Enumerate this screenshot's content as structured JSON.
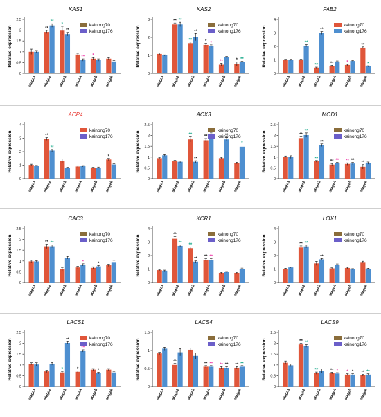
{
  "figure": {
    "ylabel": "Relative expression",
    "sig_colors": [
      "#ef3aa8",
      "#1f1f1f",
      "#18a98a",
      "#1f1f1f"
    ]
  },
  "chart_data": [
    {
      "type": "bar",
      "title": "KAS1",
      "title_color": "#111111",
      "ylabel": "Relative expression",
      "ylim": [
        0,
        2.5
      ],
      "yticks": [
        0,
        0.5,
        1,
        1.5,
        2,
        2.5
      ],
      "categories": [
        "stage1",
        "stage2",
        "stage3",
        "stage4",
        "stage5",
        "stage6"
      ],
      "series": [
        {
          "name": "kainong70",
          "color": "#e0563a",
          "values": [
            1,
            1.92,
            1.98,
            0.87,
            0.68,
            0.68
          ],
          "errors": [
            0.12,
            0.07,
            0.2,
            0.06,
            0.05,
            0.05
          ],
          "sig": [
            "",
            "**",
            "*",
            "",
            "*",
            ""
          ]
        },
        {
          "name": "kainong176",
          "color": "#4e8fd0",
          "values": [
            1,
            2.22,
            1.82,
            0.62,
            0.62,
            0.55
          ],
          "errors": [
            0.06,
            0.08,
            0.08,
            0.05,
            0.05,
            0.04
          ],
          "sig": [
            "",
            "**",
            "**",
            "**",
            "",
            ""
          ]
        }
      ],
      "legend_colors": [
        "#8a6d3b",
        "#6b5fc9"
      ]
    },
    {
      "type": "bar",
      "title": "KAS2",
      "title_color": "#111111",
      "ylabel": "Relative expression",
      "ylim": [
        0,
        3
      ],
      "yticks": [
        0,
        1,
        2,
        3
      ],
      "categories": [
        "stage1",
        "stage2",
        "stage3",
        "stage4",
        "stage5",
        "stage6"
      ],
      "series": [
        {
          "name": "kainong70",
          "color": "#e0563a",
          "values": [
            1.08,
            2.72,
            1.68,
            1.58,
            0.48,
            0.52
          ],
          "errors": [
            0.05,
            0.08,
            0.06,
            0.1,
            0.08,
            0.12
          ],
          "sig": [
            "",
            "**",
            "**",
            "*",
            "**",
            "*"
          ]
        },
        {
          "name": "kainong176",
          "color": "#4e8fd0",
          "values": [
            1,
            2.72,
            2.02,
            1.5,
            0.9,
            0.62
          ],
          "errors": [
            0.03,
            0.12,
            0.2,
            0.08,
            0.04,
            0.06
          ],
          "sig": [
            "",
            "**",
            "**",
            "*",
            "",
            "**"
          ]
        }
      ],
      "legend_colors": [
        "#8a6d3b",
        "#6b5fc9"
      ]
    },
    {
      "type": "bar",
      "title": "FAB2",
      "title_color": "#111111",
      "ylabel": "Relative expression",
      "ylim": [
        0,
        4
      ],
      "yticks": [
        0,
        1,
        2,
        3,
        4
      ],
      "categories": [
        "stage1",
        "stage2",
        "stage3",
        "stage4",
        "stage5",
        "stage6"
      ],
      "series": [
        {
          "name": "kainong70",
          "color": "#e0563a",
          "values": [
            1,
            1,
            0.42,
            0.55,
            0.62,
            1.9
          ],
          "errors": [
            0.04,
            0.05,
            0.04,
            0.05,
            0.05,
            0.06
          ],
          "sig": [
            "",
            "",
            "**",
            "**",
            "*",
            "**"
          ]
        },
        {
          "name": "kainong176",
          "color": "#4e8fd0",
          "values": [
            1,
            2.05,
            3,
            0.88,
            0.92,
            0.52
          ],
          "errors": [
            0.04,
            0.08,
            0.1,
            0.04,
            0.04,
            0.04
          ],
          "sig": [
            "",
            "**",
            "**",
            "",
            "",
            "*"
          ]
        }
      ],
      "legend_colors": [
        "#e0563a",
        "#4e8fd0"
      ]
    },
    {
      "type": "bar",
      "title": "ACP4",
      "title_color": "#e8322c",
      "ylabel": "Relative expression",
      "ylim": [
        0,
        4
      ],
      "yticks": [
        0,
        1,
        2,
        3,
        4
      ],
      "categories": [
        "stage1",
        "stage2",
        "stage3",
        "stage4",
        "stage5",
        "stage6"
      ],
      "series": [
        {
          "name": "kainong70",
          "color": "#e0563a",
          "values": [
            1.02,
            2.95,
            1.32,
            0.9,
            0.8,
            1.42
          ],
          "errors": [
            0.05,
            0.1,
            0.15,
            0.06,
            0.04,
            0.08
          ],
          "sig": [
            "",
            "**",
            "",
            "",
            "",
            "*"
          ]
        },
        {
          "name": "kainong176",
          "color": "#4e8fd0",
          "values": [
            0.95,
            2.08,
            0.8,
            0.92,
            0.82,
            1.05
          ],
          "errors": [
            0.03,
            0.08,
            0.04,
            0.05,
            0.04,
            0.05
          ],
          "sig": [
            "",
            "**",
            "",
            "",
            "",
            ""
          ]
        }
      ],
      "legend_colors": [
        "#e0563a",
        "#6b5fc9"
      ]
    },
    {
      "type": "bar",
      "title": "ACX3",
      "title_color": "#111111",
      "ylabel": "Relative expression",
      "ylim": [
        0,
        2.5
      ],
      "yticks": [
        0,
        0.5,
        1,
        1.5,
        2,
        2.5
      ],
      "categories": [
        "stage1",
        "stage2",
        "stage3",
        "stage4",
        "stage5",
        "stage6"
      ],
      "series": [
        {
          "name": "kainong70",
          "color": "#e0563a",
          "values": [
            0.95,
            0.8,
            1.82,
            1.78,
            0.95,
            0.72
          ],
          "errors": [
            0.04,
            0.05,
            0.12,
            0.08,
            0.04,
            0.04
          ],
          "sig": [
            "",
            "",
            "**",
            "**",
            "",
            ""
          ]
        },
        {
          "name": "kainong176",
          "color": "#4e8fd0",
          "values": [
            1.08,
            0.78,
            0.78,
            2.02,
            1.82,
            1.48
          ],
          "errors": [
            0.03,
            0.04,
            0.05,
            0.1,
            0.08,
            0.08
          ],
          "sig": [
            "",
            "",
            "**",
            "**",
            "**",
            "*"
          ]
        }
      ],
      "legend_colors": [
        "#8a6d3b",
        "#6b5fc9"
      ]
    },
    {
      "type": "bar",
      "title": "MOD1",
      "title_color": "#111111",
      "ylabel": "Relative expression",
      "ylim": [
        0,
        2.5
      ],
      "yticks": [
        0,
        0.5,
        1,
        1.5,
        2,
        2.5
      ],
      "categories": [
        "stage1",
        "stage2",
        "stage3",
        "stage4",
        "stage5",
        "stage6"
      ],
      "series": [
        {
          "name": "kainong70",
          "color": "#e0563a",
          "values": [
            1.02,
            1.88,
            0.8,
            0.65,
            0.68,
            0.55
          ],
          "errors": [
            0.03,
            0.06,
            0.04,
            0.05,
            0.05,
            0.1
          ],
          "sig": [
            "",
            "**",
            "**",
            "**",
            "**",
            "**"
          ]
        },
        {
          "name": "kainong176",
          "color": "#4e8fd0",
          "values": [
            1,
            2.02,
            1.55,
            0.72,
            0.7,
            0.72
          ],
          "errors": [
            0.06,
            0.1,
            0.06,
            0.04,
            0.05,
            0.05
          ],
          "sig": [
            "",
            "**",
            "**",
            "**",
            "**",
            ""
          ]
        }
      ],
      "legend_colors": [
        "#8a6d3b",
        "#6b5fc9"
      ]
    },
    {
      "type": "bar",
      "title": "CAC3",
      "title_color": "#111111",
      "ylabel": "Relative expression",
      "ylim": [
        0,
        2.5
      ],
      "yticks": [
        0,
        0.5,
        1,
        1.5,
        2,
        2.5
      ],
      "categories": [
        "stage1",
        "stage2",
        "stage3",
        "stage4",
        "stage5",
        "stage6"
      ],
      "series": [
        {
          "name": "kainong70",
          "color": "#e0563a",
          "values": [
            0.98,
            1.68,
            0.62,
            0.7,
            0.68,
            0.8
          ],
          "errors": [
            0.05,
            0.1,
            0.08,
            0.06,
            0.05,
            0.05
          ],
          "sig": [
            "",
            "**",
            "",
            "",
            "",
            ""
          ]
        },
        {
          "name": "kainong176",
          "color": "#4e8fd0",
          "values": [
            0.98,
            1.68,
            1.15,
            0.82,
            0.75,
            0.95
          ],
          "errors": [
            0.03,
            0.06,
            0.06,
            0.05,
            0.04,
            0.08
          ],
          "sig": [
            "",
            "**",
            "",
            "*",
            "*",
            ""
          ]
        }
      ],
      "legend_colors": [
        "#8a6d3b",
        "#6b5fc9"
      ]
    },
    {
      "type": "bar",
      "title": "KCR1",
      "title_color": "#111111",
      "ylabel": "Relative expression",
      "ylim": [
        0,
        4
      ],
      "yticks": [
        0,
        1,
        2,
        3,
        4
      ],
      "categories": [
        "stage1",
        "stage2",
        "stage3",
        "stage4",
        "stage5",
        "stage6"
      ],
      "series": [
        {
          "name": "kainong70",
          "color": "#e0563a",
          "values": [
            0.92,
            3.25,
            2.55,
            1.68,
            0.72,
            0.72
          ],
          "errors": [
            0.05,
            0.15,
            0.08,
            0.08,
            0.04,
            0.04
          ],
          "sig": [
            "",
            "**",
            "**",
            "**",
            "",
            ""
          ]
        },
        {
          "name": "kainong176",
          "color": "#4e8fd0",
          "values": [
            0.88,
            2.72,
            1.55,
            1.68,
            0.78,
            1.02
          ],
          "errors": [
            0.04,
            0.08,
            0.06,
            0.08,
            0.04,
            0.05
          ],
          "sig": [
            "",
            "**",
            "**",
            "**",
            "",
            ""
          ]
        }
      ],
      "legend_colors": [
        "#8a6d3b",
        "#6b5fc9"
      ]
    },
    {
      "type": "bar",
      "title": "LOX1",
      "title_color": "#111111",
      "ylabel": "Relative expression",
      "ylim": [
        0,
        4
      ],
      "yticks": [
        0,
        1,
        2,
        3,
        4
      ],
      "categories": [
        "stage1",
        "stage2",
        "stage3",
        "stage4",
        "stage5",
        "stage6"
      ],
      "series": [
        {
          "name": "kainong70",
          "color": "#e0563a",
          "values": [
            1.02,
            2.6,
            1.42,
            1.05,
            1.08,
            1.52
          ],
          "errors": [
            0.04,
            0.12,
            0.15,
            0.04,
            0.05,
            0.06
          ],
          "sig": [
            "",
            "**",
            "",
            "",
            "",
            ""
          ]
        },
        {
          "name": "kainong176",
          "color": "#4e8fd0",
          "values": [
            1.12,
            2.68,
            1.72,
            1.3,
            0.98,
            1.02
          ],
          "errors": [
            0.04,
            0.1,
            0.06,
            0.08,
            0.05,
            0.04
          ],
          "sig": [
            "",
            "**",
            "**",
            "",
            "",
            ""
          ]
        }
      ],
      "legend_colors": [
        "#8a6d3b",
        "#6b5fc9"
      ]
    },
    {
      "type": "bar",
      "title": "LACS1",
      "title_color": "#111111",
      "ylabel": "Relative expression",
      "ylim": [
        0,
        2.5
      ],
      "yticks": [
        0,
        0.5,
        1,
        1.5,
        2,
        2.5
      ],
      "categories": [
        "stage1",
        "stage2",
        "stage3",
        "stage4",
        "stage5",
        "stage6"
      ],
      "series": [
        {
          "name": "kainong70",
          "color": "#e0563a",
          "values": [
            1.05,
            0.7,
            0.65,
            0.68,
            0.78,
            0.78
          ],
          "errors": [
            0.05,
            0.05,
            0.05,
            0.04,
            0.05,
            0.05
          ],
          "sig": [
            "",
            "",
            "*",
            "*",
            "",
            ""
          ]
        },
        {
          "name": "kainong176",
          "color": "#4e8fd0",
          "values": [
            1.02,
            1.05,
            2.02,
            1.65,
            0.62,
            0.65
          ],
          "errors": [
            0.08,
            0.06,
            0.05,
            0.05,
            0.04,
            0.05
          ],
          "sig": [
            "",
            "",
            "**",
            "**",
            "*",
            ""
          ]
        }
      ],
      "legend_colors": [
        "#e0563a",
        "#6b5fc9"
      ]
    },
    {
      "type": "bar",
      "title": "LACS4",
      "title_color": "#111111",
      "ylabel": "Relative expression",
      "ylim": [
        0,
        1.5
      ],
      "yticks": [
        0,
        0.5,
        1,
        1.5
      ],
      "categories": [
        "stage1",
        "stage2",
        "stage3",
        "stage4",
        "stage5",
        "stage6"
      ],
      "series": [
        {
          "name": "kainong70",
          "color": "#e0563a",
          "values": [
            0.92,
            0.6,
            1.02,
            0.55,
            0.52,
            0.52
          ],
          "errors": [
            0.03,
            0.04,
            0.05,
            0.03,
            0.03,
            0.03
          ],
          "sig": [
            "",
            "**",
            "",
            "**",
            "**",
            "**"
          ]
        },
        {
          "name": "kainong176",
          "color": "#4e8fd0",
          "values": [
            1.05,
            0.95,
            0.85,
            0.55,
            0.52,
            0.55
          ],
          "errors": [
            0.04,
            0.1,
            0.08,
            0.03,
            0.03,
            0.03
          ],
          "sig": [
            "",
            "",
            "",
            "**",
            "**",
            "**"
          ]
        }
      ],
      "legend_colors": [
        "#8a6d3b",
        "#6b5fc9"
      ]
    },
    {
      "type": "bar",
      "title": "LACS9",
      "title_color": "#111111",
      "ylabel": "Relative expression",
      "ylim": [
        0,
        2.5
      ],
      "yticks": [
        0,
        0.5,
        1,
        1.5,
        2,
        2.5
      ],
      "categories": [
        "stage1",
        "stage2",
        "stage3",
        "stage4",
        "stage5",
        "stage6"
      ],
      "series": [
        {
          "name": "kainong70",
          "color": "#e0563a",
          "values": [
            1.1,
            1.95,
            0.62,
            0.62,
            0.55,
            0.52
          ],
          "errors": [
            0.08,
            0.05,
            0.05,
            0.04,
            0.04,
            0.04
          ],
          "sig": [
            "",
            "**",
            "**",
            "**",
            "*",
            "**"
          ]
        },
        {
          "name": "kainong176",
          "color": "#4e8fd0",
          "values": [
            0.98,
            1.88,
            0.72,
            0.6,
            0.55,
            0.55
          ],
          "errors": [
            0.06,
            0.06,
            0.1,
            0.04,
            0.04,
            0.04
          ],
          "sig": [
            "",
            "**",
            "",
            "*",
            "*",
            "**"
          ]
        }
      ],
      "legend_colors": [
        "#8a6d3b",
        "#6b5fc9"
      ]
    }
  ]
}
